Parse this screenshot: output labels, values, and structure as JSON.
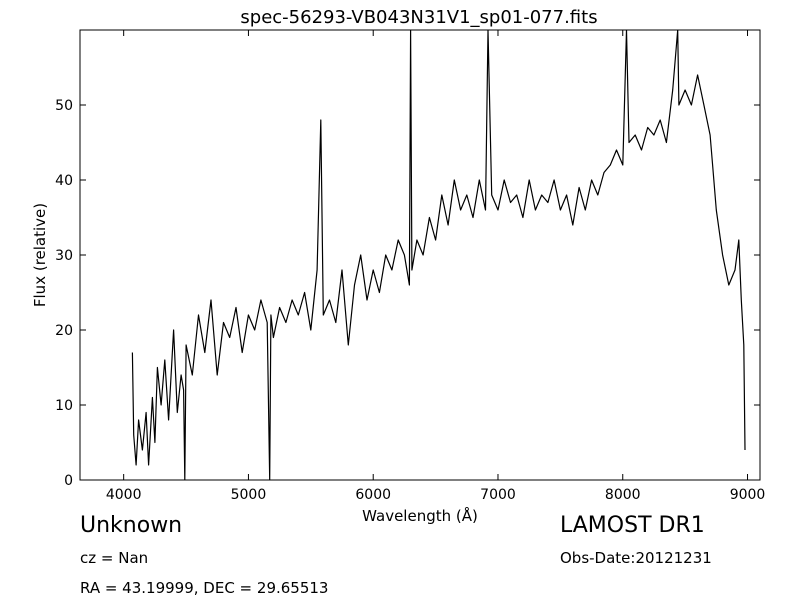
{
  "chart_data": {
    "type": "line",
    "title": "spec-56293-VB043N31V1_sp01-077.fits",
    "xlabel": "Wavelength (Å)",
    "ylabel": "Flux (relative)",
    "xlim": [
      3650,
      9100
    ],
    "ylim": [
      0,
      60
    ],
    "xticks": [
      4000,
      5000,
      6000,
      7000,
      8000,
      9000
    ],
    "yticks": [
      0,
      10,
      20,
      30,
      40,
      50
    ],
    "grid": false,
    "series": [
      {
        "color": "#000000",
        "x": [
          4070,
          4080,
          4100,
          4120,
          4150,
          4180,
          4200,
          4230,
          4250,
          4270,
          4300,
          4330,
          4360,
          4400,
          4430,
          4460,
          4480,
          4490,
          4500,
          4550,
          4600,
          4650,
          4700,
          4750,
          4800,
          4850,
          4900,
          4950,
          5000,
          5050,
          5100,
          5150,
          5170,
          5180,
          5200,
          5250,
          5300,
          5350,
          5400,
          5450,
          5500,
          5550,
          5580,
          5600,
          5650,
          5700,
          5750,
          5800,
          5850,
          5900,
          5950,
          6000,
          6050,
          6100,
          6150,
          6200,
          6250,
          6290,
          6300,
          6310,
          6350,
          6400,
          6450,
          6500,
          6550,
          6600,
          6650,
          6700,
          6750,
          6800,
          6850,
          6900,
          6920,
          6950,
          7000,
          7050,
          7100,
          7150,
          7200,
          7250,
          7300,
          7350,
          7400,
          7450,
          7500,
          7550,
          7600,
          7650,
          7700,
          7750,
          7800,
          7850,
          7900,
          7950,
          8000,
          8030,
          8050,
          8100,
          8150,
          8200,
          8250,
          8300,
          8350,
          8400,
          8440,
          8450,
          8500,
          8550,
          8600,
          8650,
          8700,
          8720,
          8750,
          8800,
          8850,
          8900,
          8930,
          8950,
          8970,
          8980
        ],
        "y": [
          17,
          6,
          2,
          8,
          4,
          9,
          2,
          11,
          5,
          15,
          10,
          16,
          8,
          20,
          9,
          14,
          12,
          0,
          18,
          14,
          22,
          17,
          24,
          14,
          21,
          19,
          23,
          17,
          22,
          20,
          24,
          21,
          0,
          22,
          19,
          23,
          21,
          24,
          22,
          25,
          20,
          28,
          48,
          22,
          24,
          21,
          28,
          18,
          26,
          30,
          24,
          28,
          25,
          30,
          28,
          32,
          30,
          26,
          60,
          28,
          32,
          30,
          35,
          32,
          38,
          34,
          40,
          36,
          38,
          35,
          40,
          36,
          60,
          38,
          36,
          40,
          37,
          38,
          35,
          40,
          36,
          38,
          37,
          40,
          36,
          38,
          34,
          39,
          36,
          40,
          38,
          41,
          42,
          44,
          42,
          60,
          45,
          46,
          44,
          47,
          46,
          48,
          45,
          52,
          60,
          50,
          52,
          50,
          54,
          50,
          46,
          42,
          36,
          30,
          26,
          28,
          32,
          24,
          18,
          4
        ]
      }
    ]
  },
  "footer": {
    "object_name": "Unknown",
    "survey": "LAMOST DR1",
    "cz": "cz = Nan",
    "obs_date": "Obs-Date:20121231",
    "radec": "RA = 43.19999, DEC = 29.65513"
  }
}
